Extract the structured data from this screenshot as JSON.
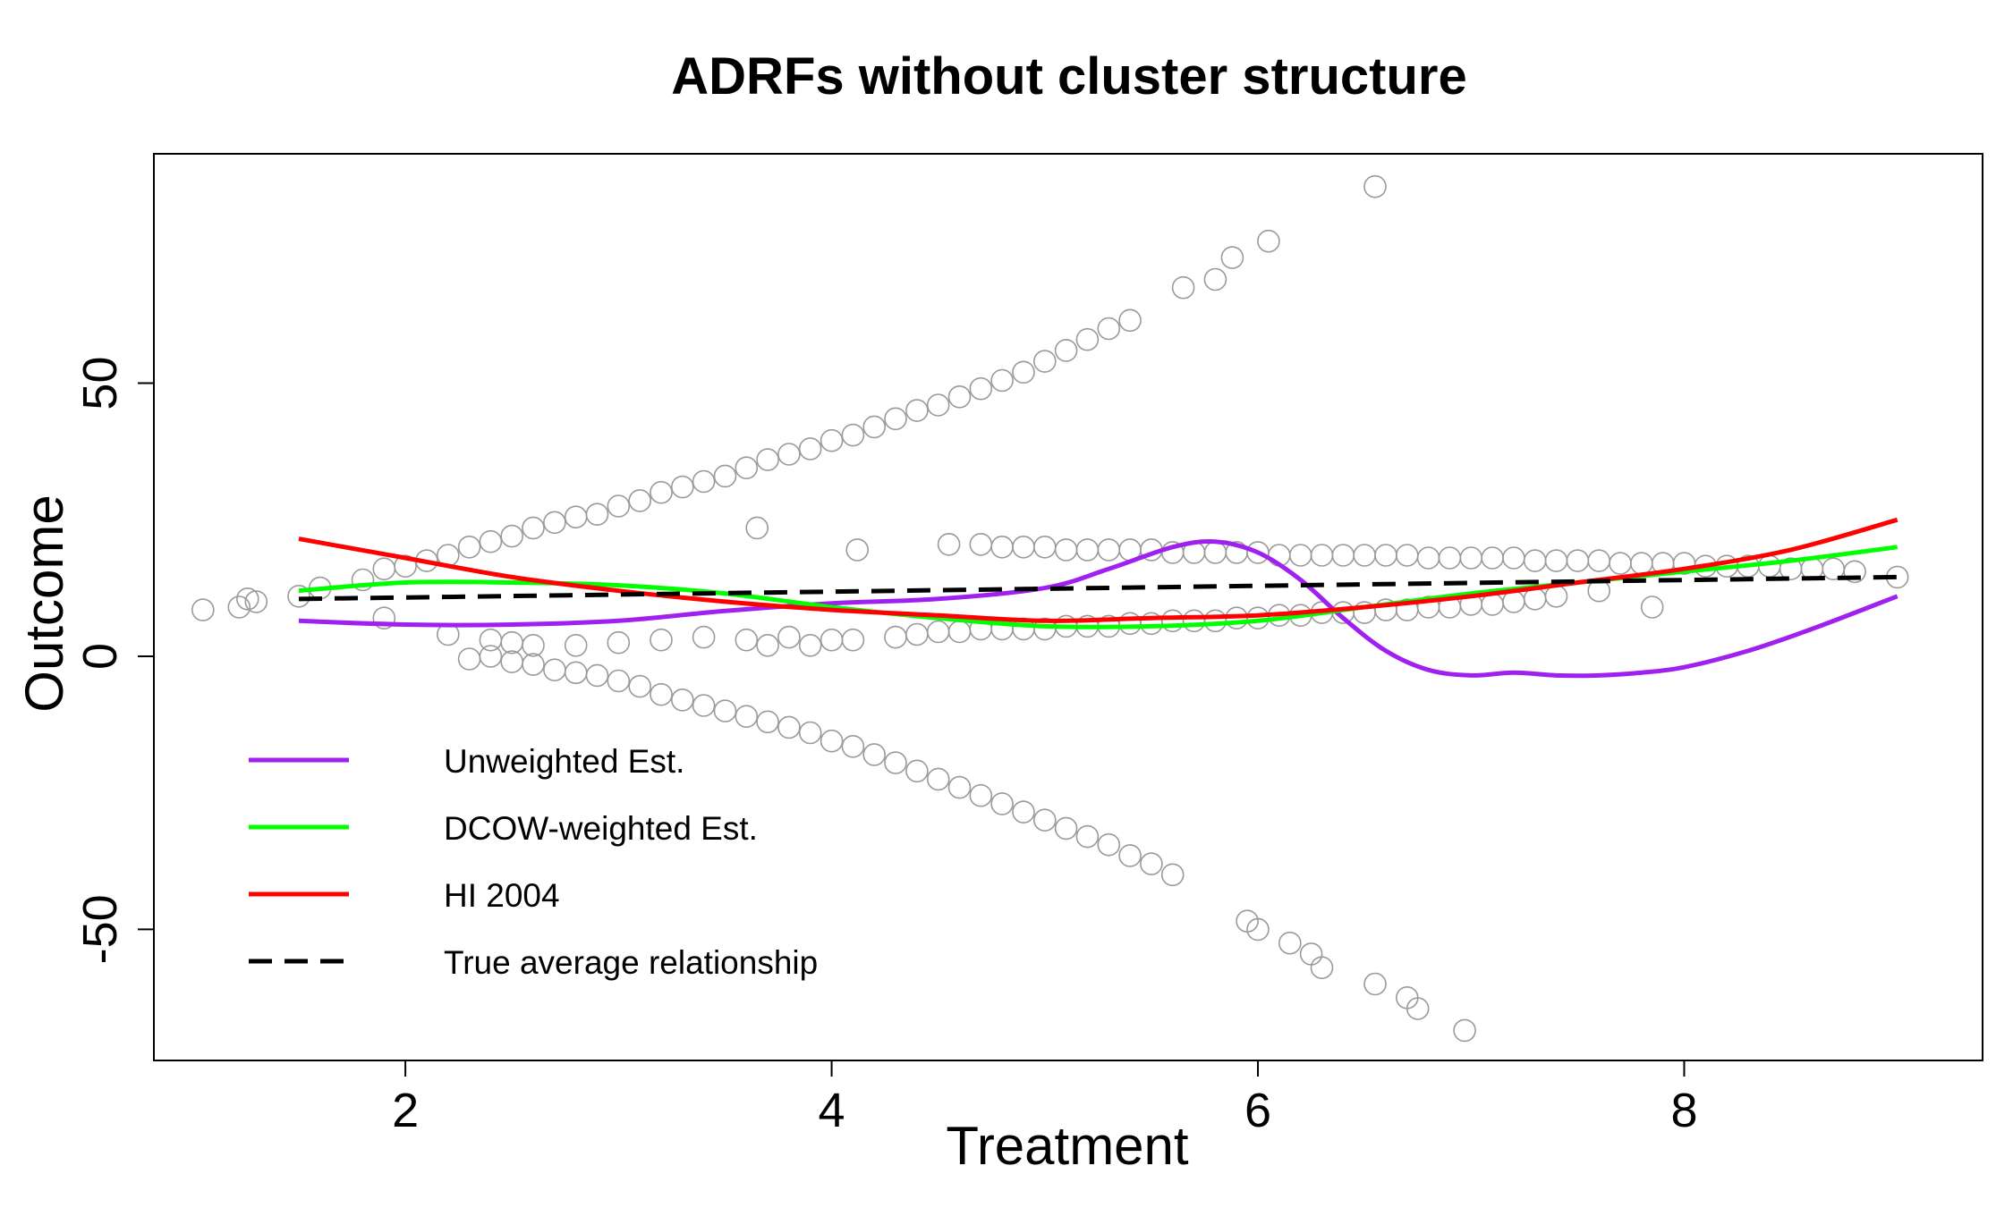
{
  "chart_data": {
    "type": "line",
    "title": "ADRFs without cluster structure",
    "xlabel": "Treatment",
    "ylabel": "Outcome",
    "xlim": [
      0.82,
      9.4
    ],
    "ylim": [
      -74,
      92
    ],
    "x_ticks": [
      2,
      4,
      6,
      8
    ],
    "y_ticks": [
      -50,
      0,
      50
    ],
    "x_tick_labels": [
      "2",
      "4",
      "6",
      "8"
    ],
    "y_tick_labels": [
      "-50",
      "0",
      "50"
    ],
    "legend_position": "bottom-left",
    "series": [
      {
        "name": "Unweighted Est.",
        "color": "#A020F0",
        "dash": "solid",
        "x": [
          1.5,
          2.0,
          2.5,
          3.0,
          3.5,
          4.0,
          4.5,
          5.0,
          5.3,
          5.6,
          5.8,
          6.0,
          6.2,
          6.4,
          6.6,
          6.8,
          7.0,
          7.2,
          7.4,
          7.6,
          7.8,
          8.0,
          8.3,
          8.6,
          9.0
        ],
        "y": [
          6.5,
          5.8,
          5.8,
          6.5,
          8.3,
          9.7,
          10.5,
          12.5,
          16,
          20,
          21,
          19,
          14,
          7,
          1,
          -2.5,
          -3.5,
          -3.0,
          -3.5,
          -3.5,
          -3.0,
          -2.0,
          1.0,
          5.0,
          11
        ]
      },
      {
        "name": "DCOW-weighted Est.",
        "color": "#00FF00",
        "dash": "solid",
        "x": [
          1.5,
          2.0,
          2.5,
          3.0,
          3.5,
          4.0,
          4.5,
          5.0,
          5.5,
          6.0,
          6.5,
          7.0,
          7.5,
          8.0,
          8.5,
          9.0
        ],
        "y": [
          12,
          13.5,
          13.5,
          13,
          11.5,
          9,
          7,
          5.5,
          5.5,
          6.5,
          9,
          11.5,
          13.5,
          15.5,
          17.5,
          20
        ]
      },
      {
        "name": "HI 2004",
        "color": "#FF0000",
        "dash": "solid",
        "x": [
          1.5,
          2.0,
          2.5,
          3.0,
          3.5,
          4.0,
          4.5,
          5.0,
          5.5,
          6.0,
          6.5,
          7.0,
          7.5,
          8.0,
          8.5,
          9.0
        ],
        "y": [
          21.5,
          18,
          14.5,
          12,
          10,
          8.5,
          7.5,
          6.5,
          7,
          7.5,
          9,
          11,
          13.5,
          16,
          19.5,
          25
        ]
      },
      {
        "name": "True average relationship",
        "color": "#000000",
        "dash": "dashed",
        "x": [
          1.5,
          9.0
        ],
        "y": [
          10.5,
          14.5
        ]
      }
    ],
    "scatter": {
      "name": "observations",
      "color": "#9A9A9A",
      "groups": [
        {
          "x": [
            1.05,
            1.22,
            1.26,
            1.3,
            1.5,
            1.6,
            1.8,
            1.9,
            2.0,
            2.1,
            2.2,
            2.3,
            2.4,
            2.5,
            2.6,
            2.7,
            2.8,
            2.9,
            3.0,
            3.1,
            3.2,
            3.3,
            3.4,
            3.5,
            3.6,
            3.7,
            3.8,
            3.9,
            4.0,
            4.1,
            4.2,
            4.3,
            4.4,
            4.5,
            4.6,
            4.7,
            4.8,
            4.9,
            5.0,
            5.1,
            5.2,
            5.3,
            5.4,
            5.65,
            5.8,
            5.88,
            6.05,
            6.55
          ],
          "y": [
            8.5,
            9.0,
            10.5,
            10.0,
            11,
            12.5,
            14,
            16,
            16.5,
            17.5,
            18.5,
            20,
            21,
            22,
            23.5,
            24.5,
            25.5,
            26,
            27.5,
            28.5,
            30,
            31,
            32,
            33,
            34.5,
            36,
            37,
            38,
            39.5,
            40.5,
            42,
            43.5,
            45,
            46,
            47.5,
            49,
            50.5,
            52,
            54,
            56,
            58,
            60,
            61.5,
            67.5,
            69,
            73,
            76,
            86
          ]
        },
        {
          "x": [
            2.3,
            2.4,
            2.5,
            2.6,
            2.7,
            2.8,
            2.9,
            3.0,
            3.1,
            3.2,
            3.3,
            3.4,
            3.5,
            3.6,
            3.7,
            3.8,
            3.9,
            4.0,
            4.1,
            4.2,
            4.3,
            4.4,
            4.5,
            4.6,
            4.7,
            4.8,
            4.9,
            5.0,
            5.1,
            5.2,
            5.3,
            5.4,
            5.5,
            5.6,
            5.95,
            6.0,
            6.15,
            6.25,
            6.3,
            6.55,
            6.7,
            6.75,
            6.97
          ],
          "y": [
            -0.5,
            0,
            -1,
            -1.5,
            -2.5,
            -3,
            -3.5,
            -4.5,
            -5.5,
            -7,
            -8,
            -9,
            -10,
            -11,
            -12,
            -13,
            -14,
            -15.5,
            -16.5,
            -18,
            -19.5,
            -21,
            -22.5,
            -24,
            -25.5,
            -27,
            -28.5,
            -30,
            -31.5,
            -33,
            -34.5,
            -36.5,
            -38,
            -40,
            -48.5,
            -50,
            -52.5,
            -54.5,
            -57,
            -60,
            -62.5,
            -64.5,
            -68.5
          ]
        },
        {
          "x": [
            4.55,
            4.7,
            4.8,
            4.9,
            5.0,
            5.1,
            5.2,
            5.3,
            5.4,
            5.5,
            5.6,
            5.7,
            5.8,
            5.9,
            6.0,
            6.1,
            6.2,
            6.3,
            6.4,
            6.5,
            6.6,
            6.7,
            6.8,
            6.9,
            7.0,
            7.1,
            7.2,
            7.3,
            7.4,
            7.5,
            7.6,
            7.7,
            7.8,
            7.9,
            8.0,
            8.1,
            8.2,
            8.3,
            8.4,
            8.5,
            8.6,
            8.7,
            8.8,
            9.0
          ],
          "y": [
            20.5,
            20.5,
            20,
            20,
            20,
            19.5,
            19.5,
            19.5,
            19.5,
            19.5,
            19,
            19,
            19,
            19,
            19,
            18.5,
            18.5,
            18.5,
            18.5,
            18.5,
            18.5,
            18.5,
            18,
            18,
            18,
            18,
            18,
            17.5,
            17.5,
            17.5,
            17.5,
            17,
            17,
            17,
            17,
            16.5,
            16.5,
            16.5,
            16.5,
            16,
            16,
            16,
            15.5,
            14.5
          ]
        },
        {
          "x": [
            2.2,
            2.4,
            2.5,
            2.6,
            2.8,
            3.0,
            3.2,
            3.4,
            3.6,
            3.7,
            3.8,
            3.9,
            4.0,
            4.1,
            4.3,
            4.4,
            4.5,
            4.6,
            4.7,
            4.8,
            4.9,
            5.0,
            5.1,
            5.2,
            5.3,
            5.4,
            5.5,
            5.6,
            5.7,
            5.8,
            5.9,
            6.0,
            6.1,
            6.2,
            6.3,
            6.4,
            6.5,
            6.6,
            6.7,
            6.8,
            6.9,
            7.0,
            7.1,
            7.2,
            7.3,
            7.4,
            7.6,
            7.85,
            3.65,
            4.12,
            1.9
          ],
          "y": [
            4,
            3,
            2.5,
            2,
            2,
            2.5,
            3,
            3.5,
            3,
            2,
            3.5,
            2,
            3,
            3,
            3.5,
            4,
            4.5,
            4.5,
            5,
            5,
            5,
            5,
            5.5,
            5.5,
            5.5,
            6,
            6,
            6.5,
            6.5,
            6.5,
            7,
            7,
            7.5,
            7.5,
            8,
            8,
            8,
            8.5,
            8.5,
            9,
            9,
            9.5,
            9.5,
            10,
            10.5,
            11,
            12,
            9,
            23.5,
            19.5,
            7
          ]
        }
      ]
    }
  }
}
